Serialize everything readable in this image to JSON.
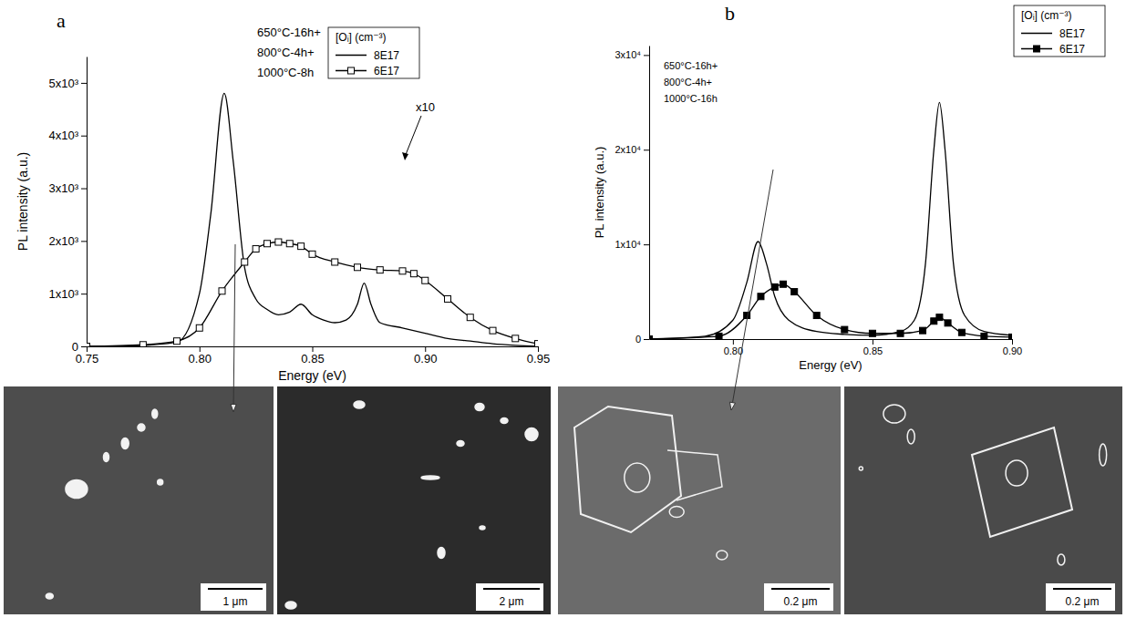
{
  "chart_data": [
    {
      "type": "line",
      "panel_label": "a",
      "xlabel": "Energy (eV)",
      "ylabel": "PL intensity (a.u.)",
      "annotations": [
        "650°C-16h+",
        "800°C-4h+",
        "1000°C-8h",
        "x10"
      ],
      "legend_title": "[Oᵢ] (cm⁻³)",
      "legend": "top",
      "grid": false,
      "xlim": [
        0.75,
        0.95
      ],
      "xticks": [
        0.75,
        {
          "value": 0.8,
          "label": "0.80"
        },
        0.85,
        {
          "value": 0.9,
          "label": "0.90"
        },
        0.95
      ],
      "ylim": [
        0,
        5500
      ],
      "yticks": [
        0,
        {
          "value": 1000,
          "label": "1x10³"
        },
        {
          "value": 2000,
          "label": "2x10³"
        },
        {
          "value": 3000,
          "label": "3x10³"
        },
        {
          "value": 4000,
          "label": "4x10³"
        },
        {
          "value": 5000,
          "label": "5x10³"
        }
      ],
      "series": [
        {
          "name": "8E17",
          "color": "#000000",
          "line_style": "solid",
          "marker": "none",
          "x": [
            0.75,
            0.77,
            0.79,
            0.8,
            0.805,
            0.811,
            0.815,
            0.82,
            0.825,
            0.83,
            0.835,
            0.84,
            0.845,
            0.85,
            0.855,
            0.86,
            0.865,
            0.87,
            0.873,
            0.876,
            0.88,
            0.89,
            0.9,
            0.91,
            0.92,
            0.93,
            0.94,
            0.95
          ],
          "values": [
            0,
            10,
            80,
            1000,
            2500,
            4800,
            3500,
            1500,
            900,
            700,
            600,
            650,
            800,
            600,
            500,
            450,
            500,
            800,
            1200,
            800,
            450,
            350,
            250,
            150,
            100,
            50,
            20,
            0
          ]
        },
        {
          "name": "6E17",
          "color": "#000000",
          "line_style": "solid",
          "marker": "square-open",
          "x": [
            0.75,
            0.775,
            0.79,
            0.8,
            0.81,
            0.82,
            0.825,
            0.83,
            0.835,
            0.84,
            0.845,
            0.85,
            0.86,
            0.87,
            0.88,
            0.89,
            0.895,
            0.9,
            0.91,
            0.92,
            0.93,
            0.94,
            0.95
          ],
          "values": [
            0,
            30,
            100,
            350,
            1050,
            1600,
            1850,
            1950,
            1980,
            1950,
            1900,
            1750,
            1600,
            1500,
            1450,
            1430,
            1380,
            1250,
            900,
            550,
            300,
            150,
            50
          ]
        }
      ]
    },
    {
      "type": "line",
      "panel_label": "b",
      "xlabel": "Energy (eV)",
      "ylabel": "PL intensity (a.u.)",
      "annotations": [
        "650°C-16h+",
        "800°C-4h+",
        "1000°C-16h"
      ],
      "legend_title": "[Oᵢ] (cm⁻³)",
      "legend": "top-right",
      "grid": false,
      "xlim": [
        0.77,
        0.9
      ],
      "xticks": [
        {
          "value": 0.8,
          "label": "0.80"
        },
        0.85,
        {
          "value": 0.9,
          "label": "0.90"
        }
      ],
      "ylim": [
        0,
        31000
      ],
      "yticks": [
        0,
        {
          "value": 10000,
          "label": "1x10⁴"
        },
        {
          "value": 20000,
          "label": "2x10⁴"
        },
        {
          "value": 30000,
          "label": "3x10⁴"
        }
      ],
      "series": [
        {
          "name": "8E17",
          "color": "#000000",
          "line_style": "solid",
          "marker": "none",
          "x": [
            0.77,
            0.79,
            0.8,
            0.805,
            0.809,
            0.812,
            0.815,
            0.82,
            0.83,
            0.84,
            0.85,
            0.86,
            0.865,
            0.869,
            0.872,
            0.874,
            0.876,
            0.879,
            0.883,
            0.89,
            0.9
          ],
          "values": [
            0,
            300,
            2000,
            6000,
            10300,
            8000,
            4500,
            2000,
            800,
            500,
            400,
            800,
            2000,
            8000,
            20000,
            25000,
            20000,
            8000,
            2500,
            800,
            400
          ]
        },
        {
          "name": "6E17",
          "color": "#000000",
          "line_style": "solid",
          "marker": "square",
          "x": [
            0.77,
            0.795,
            0.805,
            0.81,
            0.815,
            0.818,
            0.822,
            0.83,
            0.84,
            0.85,
            0.86,
            0.868,
            0.872,
            0.874,
            0.877,
            0.882,
            0.89,
            0.9
          ],
          "values": [
            0,
            300,
            2500,
            4500,
            5500,
            5800,
            5000,
            2500,
            1000,
            600,
            600,
            900,
            1900,
            2300,
            1700,
            700,
            300,
            200
          ]
        }
      ]
    }
  ],
  "images": [
    {
      "scale_bar": "1 μm"
    },
    {
      "scale_bar": "2 μm"
    },
    {
      "scale_bar": "0.2 μm"
    },
    {
      "scale_bar": "0.2 μm"
    }
  ]
}
